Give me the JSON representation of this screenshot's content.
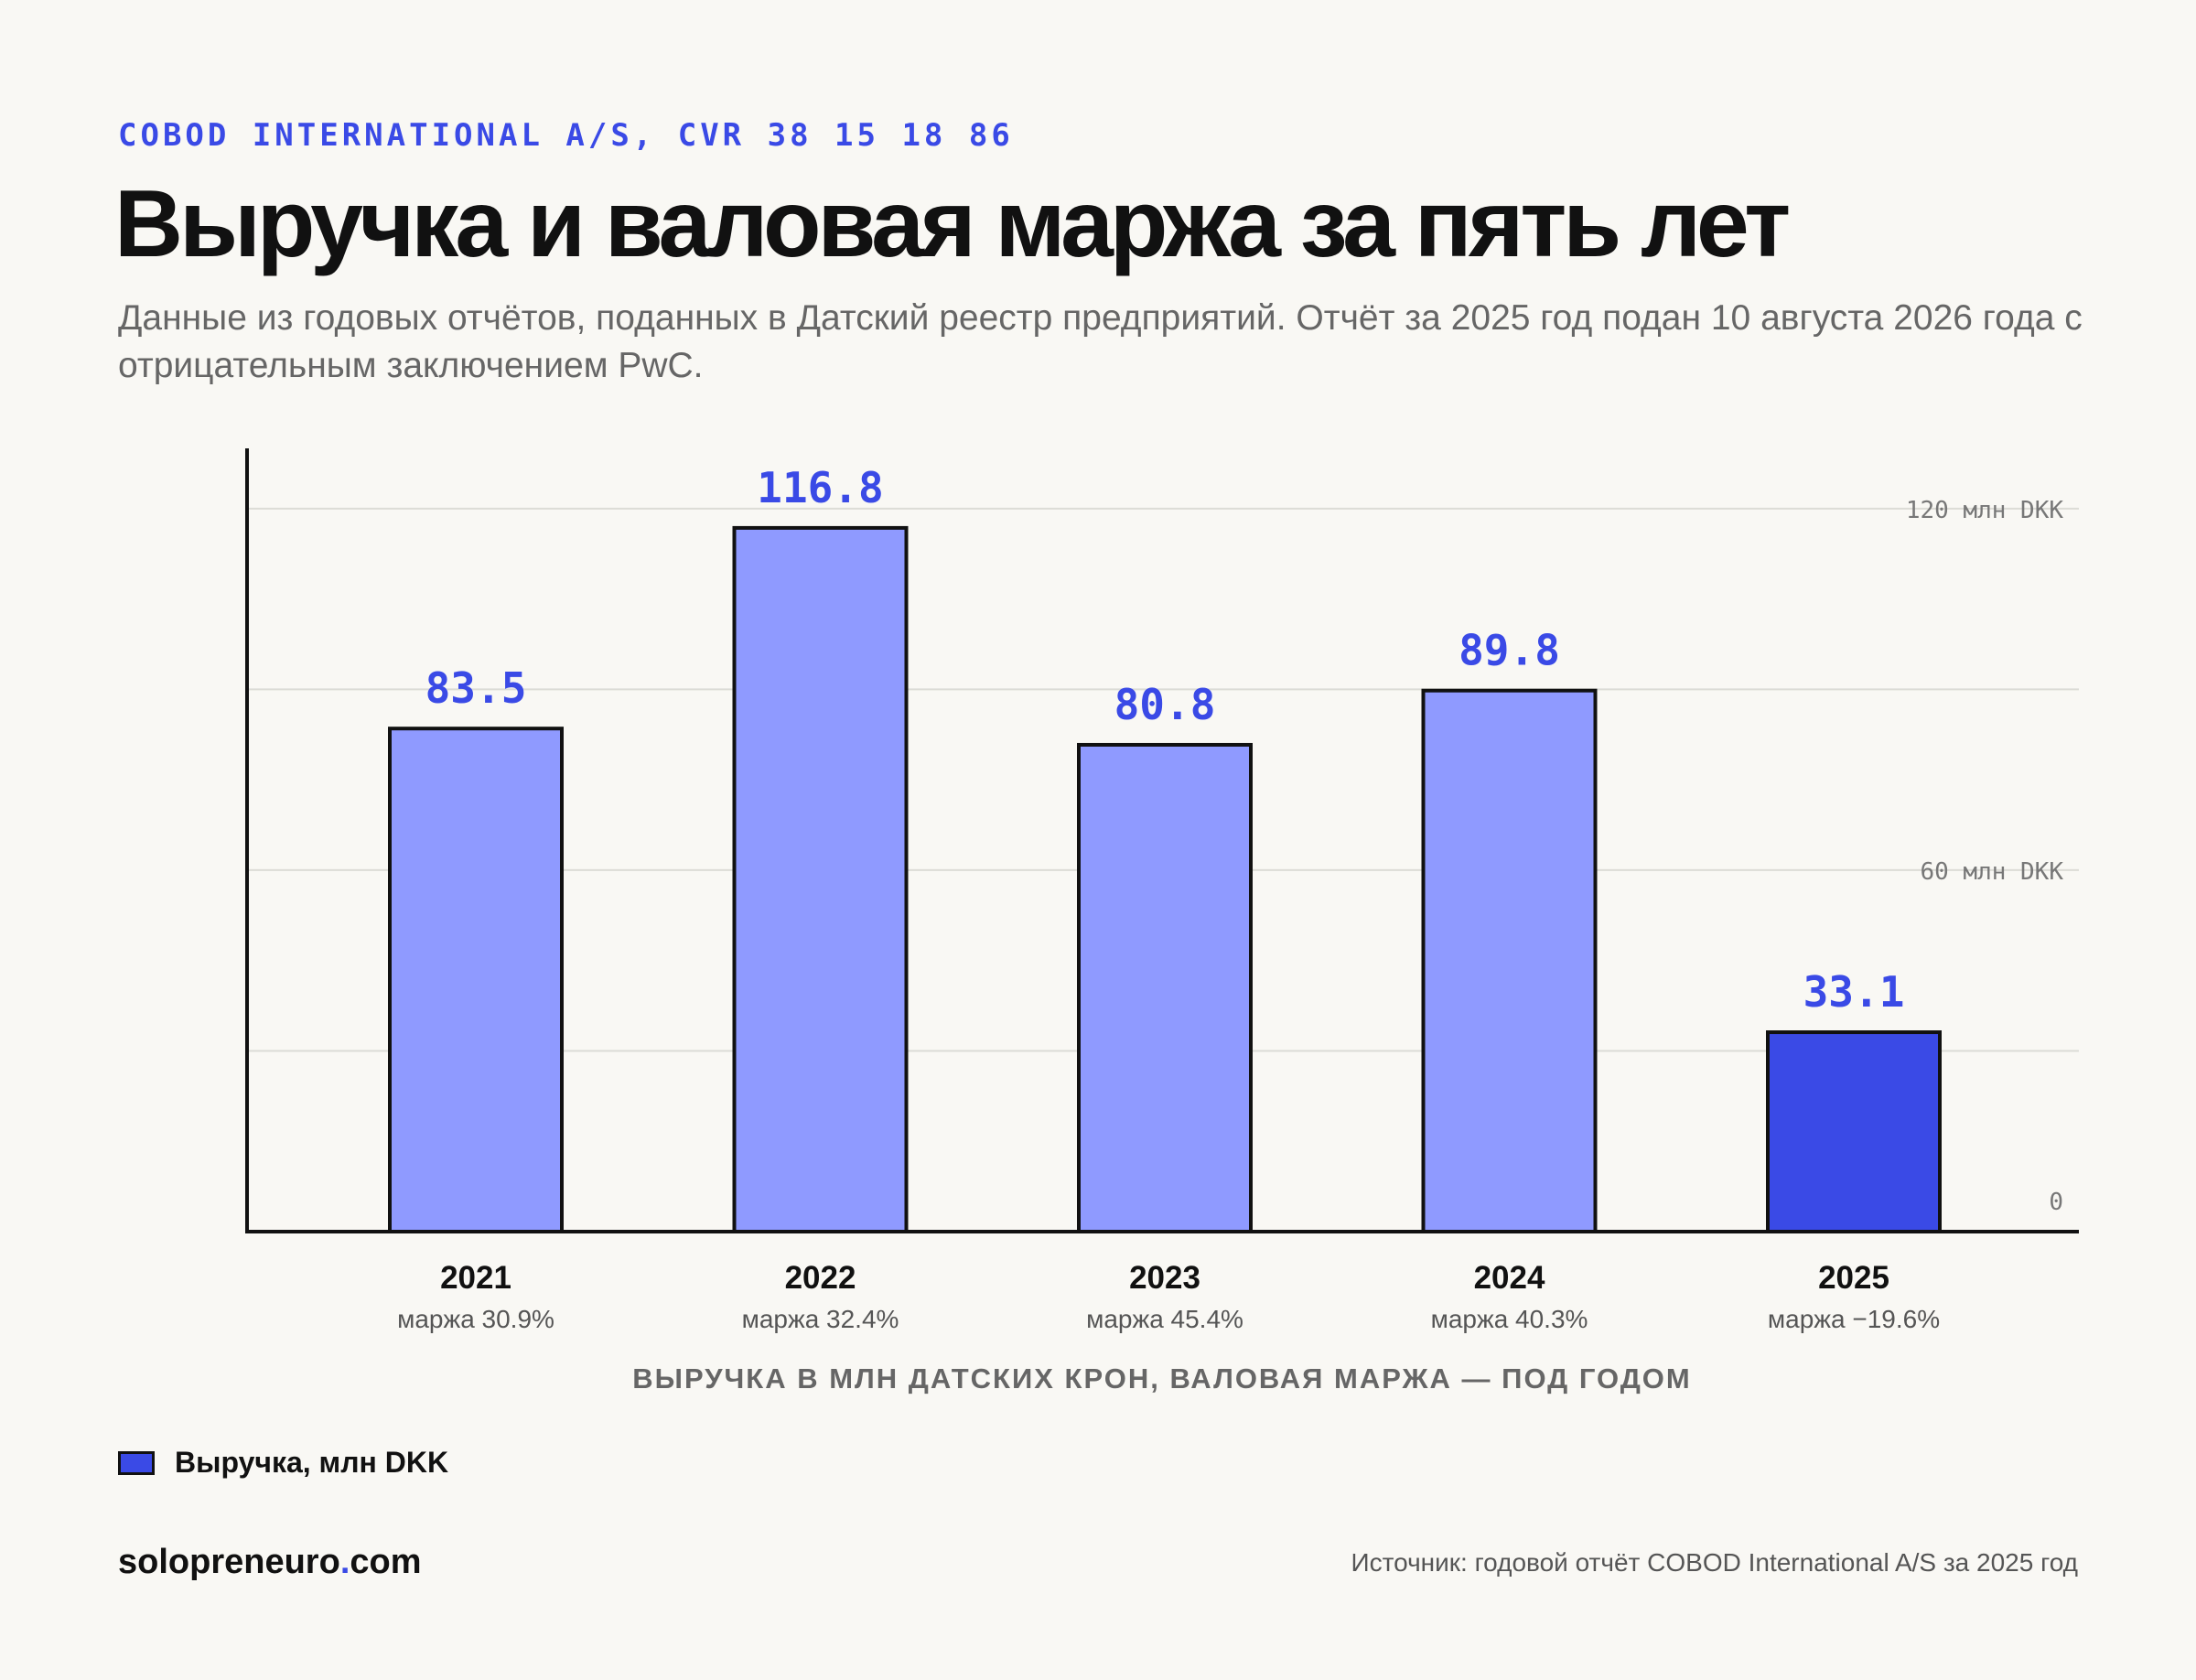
{
  "header": {
    "kicker": "COBOD INTERNATIONAL A/S, CVR 38 15 18 86",
    "title": "Выручка и валовая маржа за пять лет",
    "subtitle": "Данные из годовых отчётов, поданных в Датский реестр предприятий. Отчёт за 2025 год подан 10 августа 2026 года с отрицательным заключением PwC."
  },
  "chart_data": {
    "type": "bar",
    "categories": [
      "2021",
      "2022",
      "2023",
      "2024",
      "2025"
    ],
    "values": [
      83.5,
      116.8,
      80.8,
      89.8,
      33.1
    ],
    "value_labels": [
      "83.5",
      "116.8",
      "80.8",
      "89.8",
      "33.1"
    ],
    "sub_labels": [
      "маржа 30.9%",
      "маржа 32.4%",
      "маржа 45.4%",
      "маржа 40.3%",
      "маржа −19.6%"
    ],
    "ylim": [
      0,
      130
    ],
    "y_ticks": [
      {
        "value": 120,
        "label": "120 млн DKK"
      },
      {
        "value": 60,
        "label": "60 млн DKK"
      },
      {
        "value": 0,
        "label": "0"
      }
    ],
    "gridlines": [
      30,
      60,
      90,
      120
    ],
    "xlabel": "ВЫРУЧКА В МЛН ДАТСКИХ КРОН, ВАЛОВАЯ МАРЖА — ПОД ГОДОМ",
    "ylabel": "",
    "grid": true,
    "legend": {
      "position": "bottom-left",
      "label": "Выручка, млн DKK"
    },
    "highlight_index": 4,
    "colors": {
      "bar": "#8f9aff",
      "highlight": "#3a4ae6",
      "value_label": "#3a4ae6",
      "outline": "#111111"
    }
  },
  "footer": {
    "brand_main": "solopreneuro",
    "brand_dot": ".",
    "brand_tld": "com",
    "source": "Источник: годовой отчёт COBOD International A/S за 2025 год"
  }
}
